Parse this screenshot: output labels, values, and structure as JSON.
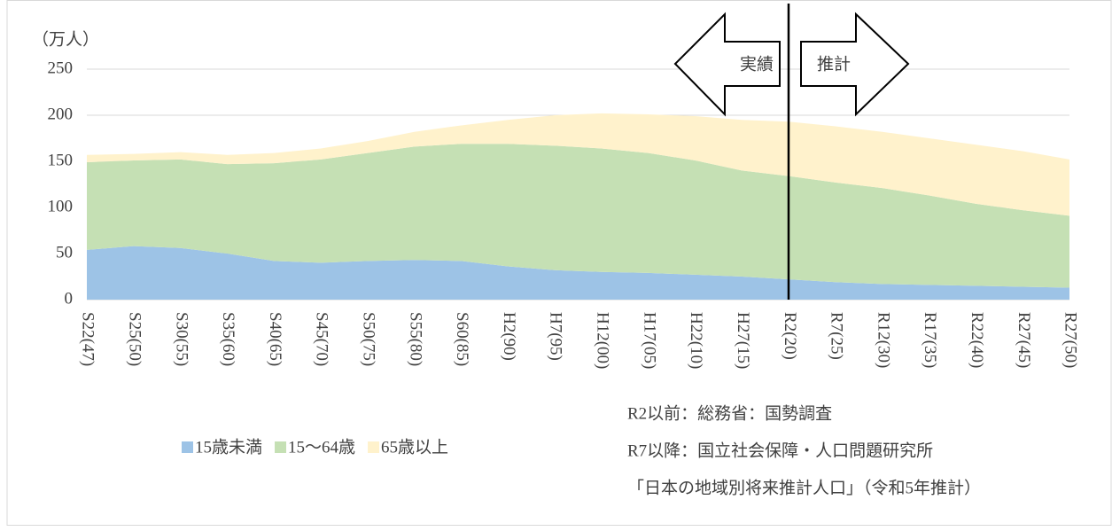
{
  "chart_data": {
    "type": "stacked-area",
    "y_unit_label": "（万人）",
    "categories": [
      "S22(47)",
      "S25(50)",
      "S30(55)",
      "S35(60)",
      "S40(65)",
      "S45(70)",
      "S50(75)",
      "S55(80)",
      "S60(85)",
      "H2(90)",
      "H7(95)",
      "H12(00)",
      "H17(05)",
      "H22(10)",
      "H27(15)",
      "R2(20)",
      "R7(25)",
      "R12(30)",
      "R17(35)",
      "R22(40)",
      "R27(45)",
      "R27(50)"
    ],
    "series": [
      {
        "name": "15歳未満",
        "color": "#9dc3e6",
        "values": [
          54,
          58,
          56,
          50,
          42,
          40,
          42,
          43,
          42,
          36,
          32,
          30,
          29,
          27,
          25,
          22,
          19,
          17,
          16,
          15,
          14,
          13
        ]
      },
      {
        "name": "15～64歳",
        "color": "#c5e0b4",
        "values": [
          95,
          93,
          96,
          97,
          106,
          112,
          117,
          123,
          127,
          133,
          135,
          134,
          130,
          124,
          115,
          112,
          108,
          104,
          97,
          89,
          83,
          78
        ]
      },
      {
        "name": "65歳以上",
        "color": "#fff2cc",
        "values": [
          8,
          7,
          8,
          10,
          11,
          12,
          13,
          16,
          20,
          26,
          33,
          38,
          42,
          48,
          55,
          59,
          61,
          61,
          62,
          64,
          64,
          61
        ]
      }
    ],
    "ylim": [
      0,
      250
    ],
    "yticks": [
      0,
      50,
      100,
      150,
      200,
      250
    ],
    "grid": true,
    "annotations": {
      "left_arrow": "実績",
      "right_arrow": "推計"
    },
    "notes": [
      "R2以前：総務省：国勢調査",
      "R7以降：国立社会保障・人口問題研究所",
      "「日本の地域別将来推計人口」（令和5年推計）"
    ]
  }
}
